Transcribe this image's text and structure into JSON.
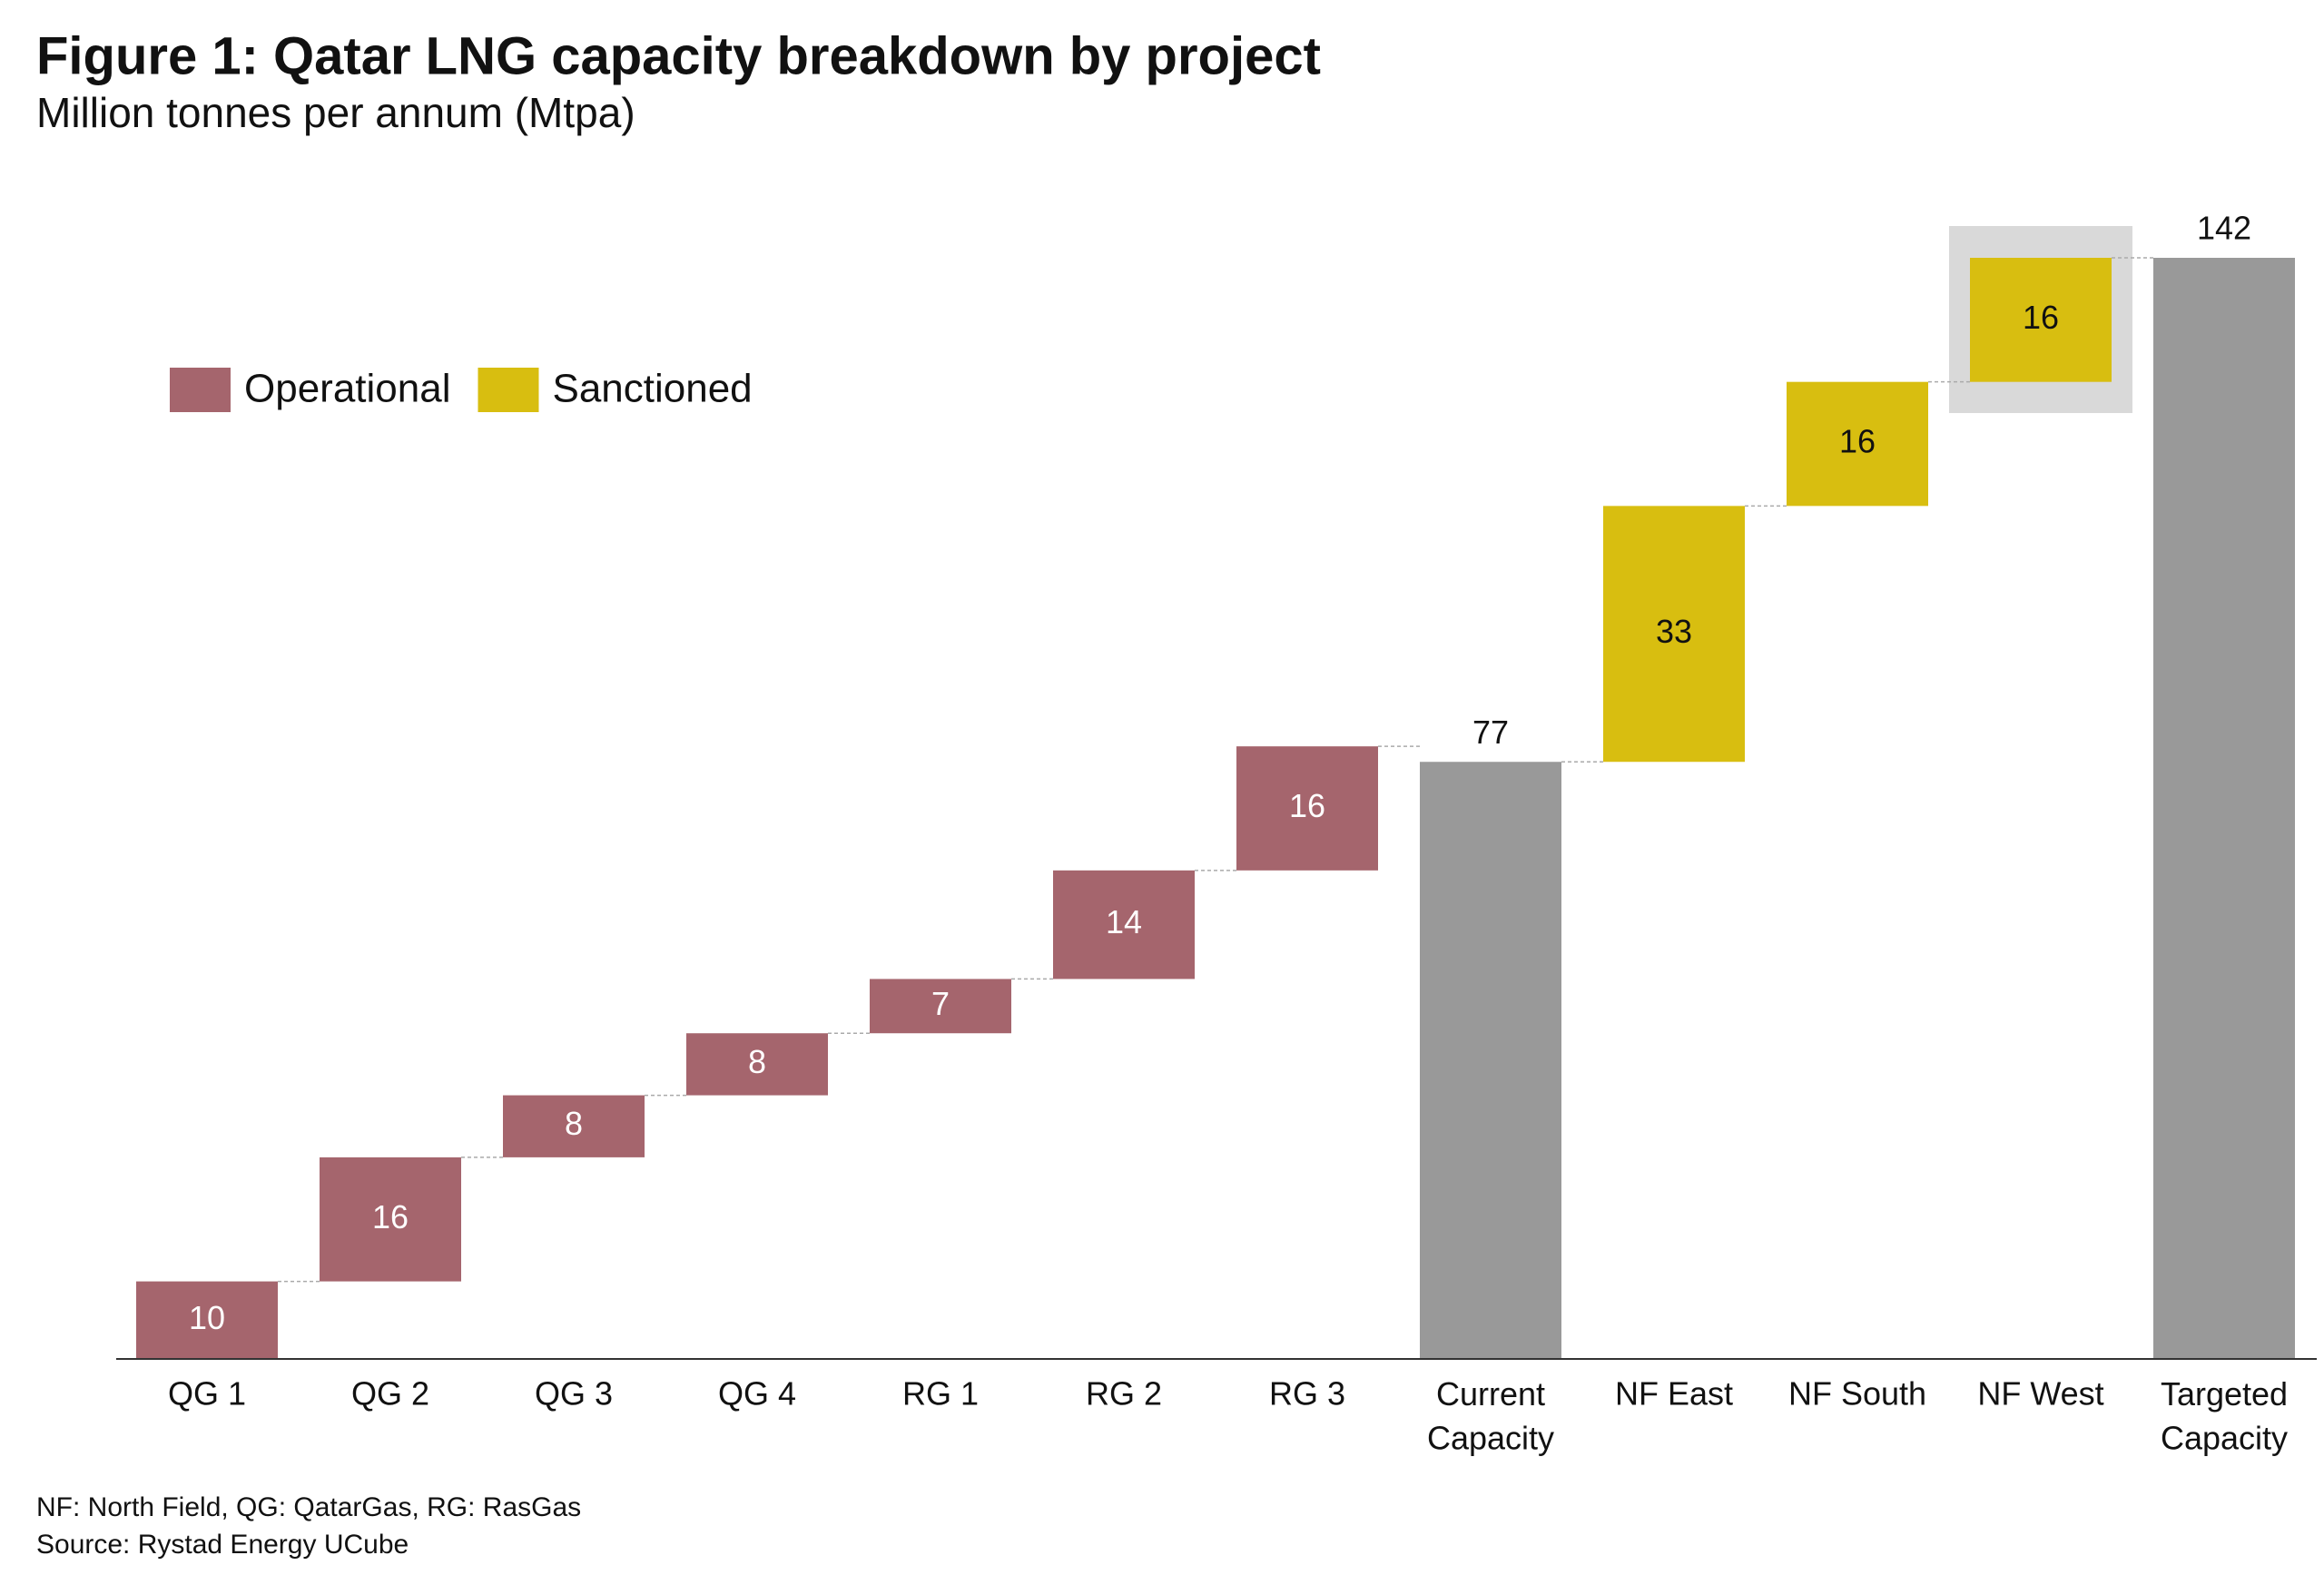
{
  "chart_data": {
    "type": "waterfall",
    "title": "Figure 1: Qatar LNG capacity breakdown by project",
    "subtitle": "Million tonnes per annum (Mtpa)",
    "categories": [
      "QG 1",
      "QG 2",
      "QG 3",
      "QG 4",
      "RG 1",
      "RG 2",
      "RG 3",
      "Current\nCapacity",
      "NF East",
      "NF South",
      "NF West",
      "Targeted\nCapacity"
    ],
    "series": [
      {
        "name": "Operational",
        "color": "#a5656d",
        "values": [
          10,
          16,
          8,
          8,
          7,
          14,
          16,
          null,
          null,
          null,
          null,
          null
        ]
      },
      {
        "name": "Sanctioned",
        "color": "#d8be10",
        "values": [
          null,
          null,
          null,
          null,
          null,
          null,
          null,
          null,
          33,
          16,
          16,
          null
        ]
      }
    ],
    "totals": {
      "color": "#999999",
      "values": [
        null,
        null,
        null,
        null,
        null,
        null,
        null,
        77,
        null,
        null,
        null,
        142
      ]
    },
    "ylim": [
      0,
      142
    ],
    "legend": "top-left",
    "footnotes": [
      "NF: North Field, QG: QatarGas, RG: RasGas",
      "Source: Rystad Energy UCube"
    ]
  }
}
